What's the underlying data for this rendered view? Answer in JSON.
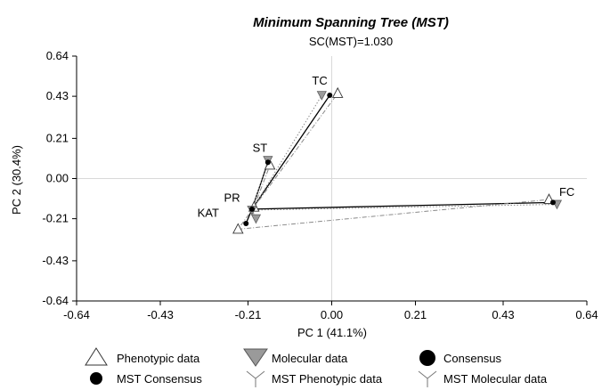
{
  "chart_data": {
    "type": "scatter",
    "title": "Minimum Spanning Tree (MST)",
    "subtitle": "SC(MST)=1.030",
    "xlabel": "PC 1 (41.1%)",
    "ylabel": "PC 2 (30.4%)",
    "xlim": [
      -0.64,
      0.64
    ],
    "ylim": [
      -0.64,
      0.64
    ],
    "xticks": [
      "-0.64",
      "-0.43",
      "-0.21",
      "0.00",
      "0.21",
      "0.43",
      "0.64"
    ],
    "yticks": [
      "0.64",
      "0.43",
      "0.21",
      "0.00",
      "-0.21",
      "-0.43",
      "-0.64"
    ],
    "xtick_values": [
      -0.64,
      -0.43,
      -0.21,
      0.0,
      0.21,
      0.43,
      0.64
    ],
    "ytick_values": [
      0.64,
      0.43,
      0.21,
      0.0,
      -0.21,
      -0.43,
      -0.64
    ],
    "grid": "zero-lines",
    "legend_position": "bottom",
    "labels": [
      {
        "text": "TC",
        "x": -0.03,
        "y": 0.49
      },
      {
        "text": "ST",
        "x": -0.18,
        "y": 0.14
      },
      {
        "text": "PR",
        "x": -0.25,
        "y": -0.12
      },
      {
        "text": "KAT",
        "x": -0.31,
        "y": -0.2
      },
      {
        "text": "FC",
        "x": 0.59,
        "y": -0.09
      }
    ],
    "series": [
      {
        "name": "Phenotypic data",
        "marker": "triangle-up-open",
        "points": [
          {
            "id": "TC",
            "x": 0.015,
            "y": 0.445
          },
          {
            "id": "ST",
            "x": -0.155,
            "y": 0.07
          },
          {
            "id": "PR",
            "x": -0.195,
            "y": -0.15
          },
          {
            "id": "KAT",
            "x": -0.235,
            "y": -0.265
          },
          {
            "id": "FC",
            "x": 0.545,
            "y": -0.11
          }
        ]
      },
      {
        "name": "Molecular data",
        "marker": "triangle-down-filled",
        "points": [
          {
            "id": "TC",
            "x": -0.025,
            "y": 0.435
          },
          {
            "id": "ST",
            "x": -0.16,
            "y": 0.095
          },
          {
            "id": "PR",
            "x": -0.2,
            "y": -0.165
          },
          {
            "id": "KAT",
            "x": -0.19,
            "y": -0.21
          },
          {
            "id": "FC",
            "x": 0.565,
            "y": -0.135
          }
        ]
      },
      {
        "name": "Consensus",
        "marker": "circle-filled",
        "points": [
          {
            "id": "TC",
            "x": -0.005,
            "y": 0.435
          },
          {
            "id": "ST",
            "x": -0.16,
            "y": 0.085
          },
          {
            "id": "PR",
            "x": -0.2,
            "y": -0.16
          },
          {
            "id": "KAT",
            "x": -0.215,
            "y": -0.235
          },
          {
            "id": "FC",
            "x": 0.555,
            "y": -0.125
          }
        ]
      }
    ],
    "edges": [
      {
        "name": "MST Consensus",
        "style": "solid",
        "pairs": [
          [
            "PR",
            "TC"
          ],
          [
            "PR",
            "ST"
          ],
          [
            "PR",
            "KAT"
          ],
          [
            "PR",
            "FC"
          ]
        ]
      },
      {
        "name": "MST Phenotypic data",
        "style": "dashed",
        "pairs": [
          [
            "PR",
            "TC"
          ],
          [
            "PR",
            "ST"
          ],
          [
            "PR",
            "KAT"
          ],
          [
            "KAT",
            "FC"
          ]
        ]
      },
      {
        "name": "MST Molecular data",
        "style": "dotted",
        "pairs": [
          [
            "PR",
            "TC"
          ],
          [
            "PR",
            "ST"
          ],
          [
            "PR",
            "KAT"
          ],
          [
            "PR",
            "FC"
          ]
        ]
      }
    ],
    "legend": [
      {
        "label": "Phenotypic data",
        "marker": "triangle-up-open"
      },
      {
        "label": "Molecular data",
        "marker": "triangle-down-filled"
      },
      {
        "label": "Consensus",
        "marker": "circle-filled"
      },
      {
        "label": "MST Consensus",
        "marker": "circle-filled"
      },
      {
        "label": "MST Phenotypic data",
        "marker": "y-line"
      },
      {
        "label": "MST Molecular data",
        "marker": "y-line"
      }
    ],
    "colors": {
      "axis": "#000000",
      "zero_line": "#d9d9d9",
      "molecular_fill": "#9a9a9a",
      "edge_solid": "#000000",
      "edge_light": "#8a8a8a"
    }
  }
}
